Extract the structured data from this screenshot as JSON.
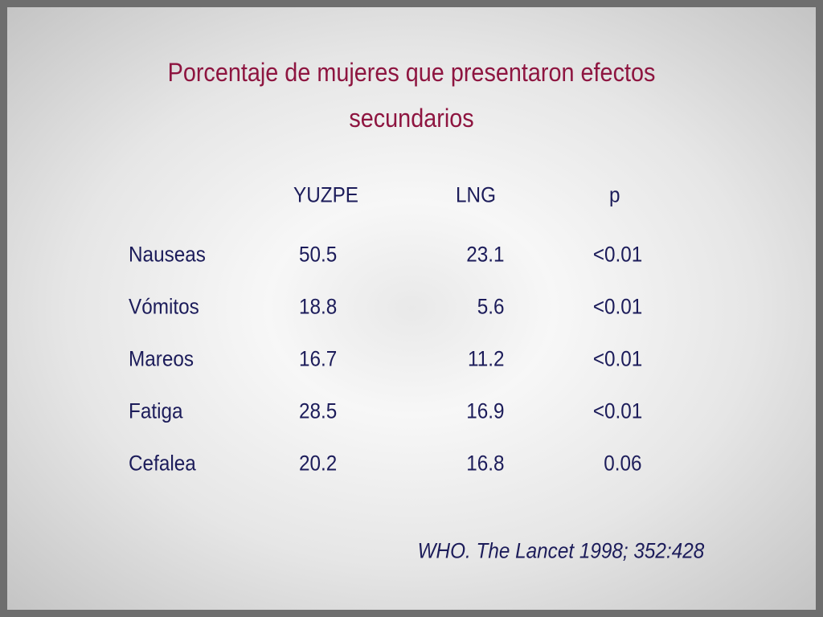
{
  "title": [
    "Porcentaje de mujeres que presentaron efectos",
    "secundarios"
  ],
  "table": {
    "header": [
      "YUZPE",
      "LNG",
      "p"
    ],
    "rows": [
      [
        "Nauseas",
        "50.5",
        "23.1",
        "<0.01"
      ],
      [
        "Vómitos",
        "18.8",
        "5.6",
        "<0.01"
      ],
      [
        "Mareos",
        "16.7",
        "11.2",
        "<0.01"
      ],
      [
        "Fatiga",
        "28.5",
        "16.9",
        "<0.01"
      ],
      [
        "Cefalea",
        "20.2",
        "16.8",
        "0.06"
      ]
    ]
  },
  "citation": "WHO. The Lancet 1998; 352:428"
}
